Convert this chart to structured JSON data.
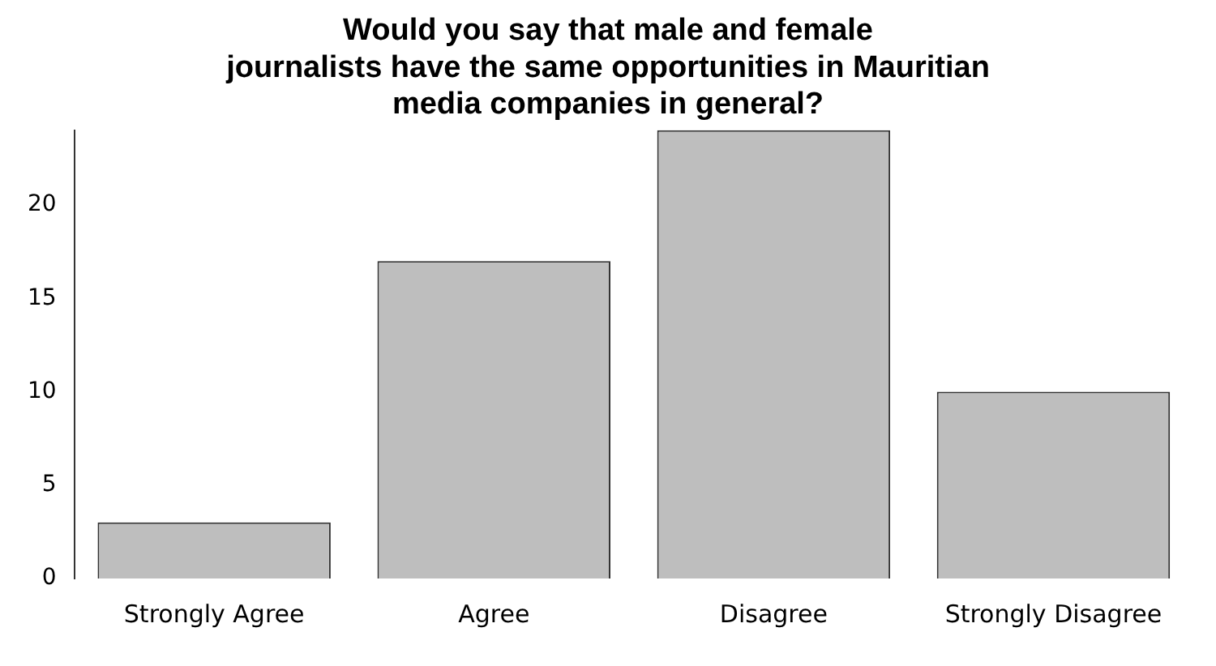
{
  "chart_data": {
    "type": "bar",
    "title": "Would you say that male and female\njournalists have the same opportunities in Mauritian\nmedia companies in general?",
    "categories": [
      "Strongly Agree",
      "Agree",
      "Disagree",
      "Strongly Disagree"
    ],
    "values": [
      3,
      17,
      24,
      10
    ],
    "color": "#bebebe",
    "ylim": [
      0,
      24
    ],
    "yticks": [
      0,
      5,
      10,
      15,
      20
    ],
    "grid": false,
    "legend": false
  }
}
